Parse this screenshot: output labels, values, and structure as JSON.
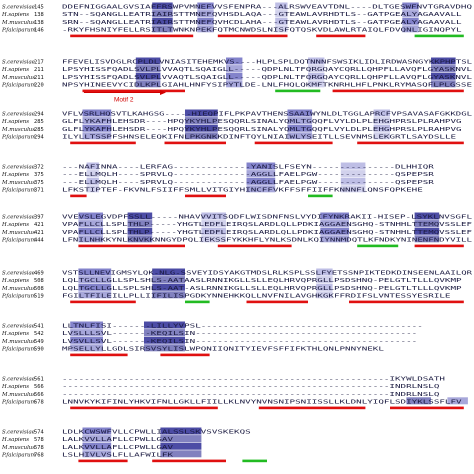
{
  "colors": {
    "shade_strong": "#2d2d95",
    "shade_mid": "#6d6dc2",
    "shade_light": "#b3b3e0",
    "helix_red": "#e01010",
    "strand_green": "#22bb22",
    "motif_red": "#d10000"
  },
  "species": [
    "S.cerevisiae",
    "H.sapiens",
    "M.musculus",
    "P.falciparum"
  ],
  "motif_label": "Motif 2",
  "blocks": [
    {
      "numbers": [
        "145",
        "138",
        "138",
        "146"
      ],
      "sequences": [
        "DDEFNIGGAALGVSIAFFRSWPVMNEFVVSFENPRA---ALRSWVEAVTDNL----DLTGESWFNVTGRAVDHQ",
        "STN--SQANGLLEATRIAIRSTTMNEFQVHSDLAQA---GTEAWLAVRHDTLS--GATPGEALYAGAAVALL",
        "SRN--SQANGLLEATRIAIRSTTMNEFQVHCDLAHA---GTEAWLAVRHDTLS--GATPGEALYAGAAVALL",
        "-RKYFHSNIYFELLRSITLTWNKNPEKFQTMCNWDSLNISFQTQSKVDLAWLRTAIQLFDVQNLIGINQPYL"
      ]
    },
    {
      "numbers": [
        "217",
        "211",
        "211",
        "220"
      ],
      "sequences": [
        "FFEVELISVDGLRCPLDLVNIASITEHEMKVS----HLPLSPLDQTNNNFSWSIKLIDLIRDWASNGYKKPHPTSL",
        "LPSYHISSFQADLSVLPLVVAQTLSQAIGLL-----QDPLNLTFQRGQAYCQRLLQHPFLLAVQFLGYASKNVL",
        "LPSYHISSFQADLSVLPLVVAQTLSQAIGLL-----QDPLNLTFQRGQAYCQRLLQHPFLLAVQFLGYASKNVL",
        "NPSYHINEEVYCIDLKPLGIAHLHNFYSIPYTLDE-LNLFHQLQKMFTKNRHLHFLPNKLRYMASQFLPLGSSE"
      ]
    },
    {
      "numbers": [
        "294",
        "285",
        "285",
        "294"
      ],
      "sequences": [
        "VFLVSRLHQSVTLKAHGSG-----HIEQPIFLPKPAVTHENSSAAIWYNLDLTGGLAPRCFVPSAVASAFGKKDGL",
        "GLFLYKAFHLEHSDR----HPQYKYHLPESQQRLSINALYQMLTGQQFLVYLDLPLEHGHPRSLPLRAHPVG",
        "GLFLYKAFHLEHSDR----HPQYKYHLPESQQRLSINALYQMLTGQQFLVYLDLPLEHGHPRSLPLRAHPVG",
        "ILYLLTSSPFSHNSELEQKIFNLPKGNKKDINFTQYLNIAIWLYSEITLLSEVNMSLEKGRTLSAYDSLLE"
      ]
    },
    {
      "numbers": [
        "372",
        "375",
        "375",
        "371"
      ],
      "sequences": [
        "---NAFINNA----LERFAG--------------YANISLFSEYN---------------DLHHIQR",
        "---ELLMQLH----SPRVLQ--------------AGGLLFAELPGW--------------QSPEPSR",
        "---ELLMQLH----SPRVLQ--------------AGGLLFAELPGW--------------QSPEPSR",
        "LFKSTIPTEF-FKVNLFSIIFFSMLLVITGIYHINCFFVKFFSFFIIFFKNNNFLQNSFQPKEHE"
      ]
    },
    {
      "numbers": [
        "397",
        "421",
        "421",
        "444"
      ],
      "sequences": [
        "VVEVSLEGVDPFSSLL-----NHAVVVITSQDFLWISDNFNSLVYDIFYNKRAKII-HISEP-LSYKLNVSGFL",
        "VPAFLLCLLSPLTHLP-----YHGTLEDFLEIRQSLARDLQLLPDKIAGGAENSGHQ-STNHHLTTEMQVSSLEF",
        "VPAFLLCLLSPLTHLP-----YHGTLEDFLEIRQSLARDLQLLPDKIAGGAENSGHQ-STNHHLTTEMQVSSLEF",
        "LFNILNHKKYNLKNVKKNNGYDPQLIEKSSFYKKHFLYNLKSDNLKQIYNNMDQTLKFNDKYNINENFNDYVILL"
      ]
    },
    {
      "numbers": [
        "469",
        "508",
        "508",
        "519"
      ],
      "sequences": [
        "VSTSLLNEVIGMSYLQK-NLG-SSVEYIDSYAKGTMDSLRLKSPLSSLFYETSSNPIKTEDKDINSEENLAAILQR",
        "LQLTGCLLGLLSPLSHLS-AATAASLRNNIKGLLSLLEQLHRVQPRGLLPSDSHNQ-PELGTLTLLLQVKMP",
        "LQLTGCLLGLLSPLSHLS-AAT-ASLRNNIKGLLSLLEQLHRVQPRGLLPSDSHNQ-PELGTLTLLLQVKMP",
        "FGILTFILEILLPLLIIFILISPGDKYNNEHKKQLLNVFNILAVGHKGKFFRDIFSLVNTESSYESRILE"
      ]
    },
    {
      "numbers": [
        "541",
        "542",
        "549",
        "590"
      ],
      "sequences": [
        "LLTNLFISI-------LILLYVPSL----------------------------------------",
        "LVSLLLSVL-------KEQILSIN----------------------------------------",
        "LVSVLLSVL-------KEQILSIN----------------------------------------",
        "MPSELLYLLGDLSIRSVSYLISLWPQNIIQNITYIEVFSFFIFKTHLQNLPNNYNEKL"
      ]
    },
    {
      "numbers": [
        "561",
        "566",
        "566",
        "678"
      ],
      "sequences": [
        "-----------------------------------------------------------IKYWLDSATH",
        "-----------------------------------------------------------INDRLNSLQ",
        "-----------------------------------------------------------INDRLNSLQ",
        "LNNVKYKIFINLYHKVIFNLLGKLLFIILLKLNVYNVNSNIPSNIISSLLKLDNLYIQFLSDIYKLSSFLFV"
      ]
    },
    {
      "numbers": [
        "574",
        "578",
        "578",
        "768"
      ],
      "sequences": [
        "LDLKCWSWFVLLCPWLLIALSSLSKVSVSKEKQS",
        "LALKVVLLAFLLCPWLLGAV",
        "LALKVVLLAFLLCPWLLGAV",
        "LSLHIVLVSLFLLAFWILFK"
      ]
    }
  ]
}
